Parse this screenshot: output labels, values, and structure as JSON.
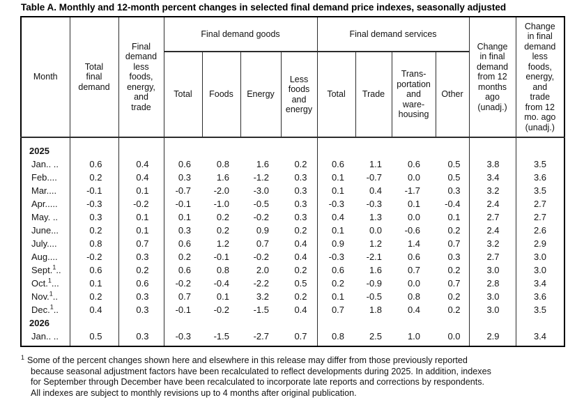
{
  "title": "Table A. Monthly and 12-month percent changes in selected final demand price indexes, seasonally adjusted",
  "header": {
    "month": "Month",
    "total_final_demand": "Total\nfinal\ndemand",
    "fd_less_fet": "Final\ndemand\nless\nfoods,\nenergy,\nand\ntrade",
    "goods_group": "Final demand goods",
    "services_group": "Final demand services",
    "goods_total": "Total",
    "goods_foods": "Foods",
    "goods_energy": "Energy",
    "goods_less": "Less\nfoods\nand\nenergy",
    "svc_total": "Total",
    "svc_trade": "Trade",
    "svc_transp": "Trans-\nportation\nand\nware-\nhousing",
    "svc_other": "Other",
    "chg_12mo": "Change\nin final\ndemand\nfrom 12\nmonths\nago\n(unadj.)",
    "chg_12mo_less": "Change\nin final\ndemand\nless\nfoods,\nenergy,\nand\ntrade\nfrom 12\nmo. ago\n(unadj.)"
  },
  "rows": [
    {
      "type": "year",
      "label": "2025"
    },
    {
      "type": "data",
      "month": "Jan.. ..",
      "sup": "",
      "dots": "",
      "values": [
        "0.6",
        "0.4",
        "0.6",
        "0.8",
        "1.6",
        "0.2",
        "0.6",
        "1.1",
        "0.6",
        "0.5",
        "3.8",
        "3.5"
      ]
    },
    {
      "type": "data",
      "month": "Feb....",
      "sup": "",
      "dots": "",
      "values": [
        "0.2",
        "0.4",
        "0.3",
        "1.6",
        "-1.2",
        "0.3",
        "0.1",
        "-0.7",
        "0.0",
        "0.5",
        "3.4",
        "3.6"
      ]
    },
    {
      "type": "data",
      "month": "Mar....",
      "sup": "",
      "dots": "",
      "values": [
        "-0.1",
        "0.1",
        "-0.7",
        "-2.0",
        "-3.0",
        "0.3",
        "0.1",
        "0.4",
        "-1.7",
        "0.3",
        "3.2",
        "3.5"
      ]
    },
    {
      "type": "data",
      "month": "Apr.....",
      "sup": "",
      "dots": "",
      "values": [
        "-0.3",
        "-0.2",
        "-0.1",
        "-1.0",
        "-0.5",
        "0.3",
        "-0.3",
        "-0.3",
        "0.1",
        "-0.4",
        "2.4",
        "2.7"
      ]
    },
    {
      "type": "data",
      "month": "May. ..",
      "sup": "",
      "dots": "",
      "values": [
        "0.3",
        "0.1",
        "0.1",
        "0.2",
        "-0.2",
        "0.3",
        "0.4",
        "1.3",
        "0.0",
        "0.1",
        "2.7",
        "2.7"
      ]
    },
    {
      "type": "data",
      "month": "June...",
      "sup": "",
      "dots": "",
      "values": [
        "0.2",
        "0.1",
        "0.3",
        "0.2",
        "0.9",
        "0.2",
        "0.1",
        "0.0",
        "-0.6",
        "0.2",
        "2.4",
        "2.6"
      ]
    },
    {
      "type": "data",
      "month": "July....",
      "sup": "",
      "dots": "",
      "values": [
        "0.8",
        "0.7",
        "0.6",
        "1.2",
        "0.7",
        "0.4",
        "0.9",
        "1.2",
        "1.4",
        "0.7",
        "3.2",
        "2.9"
      ]
    },
    {
      "type": "data",
      "month": "Aug....",
      "sup": "",
      "dots": "",
      "values": [
        "-0.2",
        "0.3",
        "0.2",
        "-0.1",
        "-0.2",
        "0.4",
        "-0.3",
        "-2.1",
        "0.6",
        "0.3",
        "2.7",
        "3.0"
      ]
    },
    {
      "type": "data",
      "month": "Sept.",
      "sup": "1",
      "dots": "..",
      "values": [
        "0.6",
        "0.2",
        "0.6",
        "0.8",
        "2.0",
        "0.2",
        "0.6",
        "1.6",
        "0.7",
        "0.2",
        "3.0",
        "3.0"
      ]
    },
    {
      "type": "data",
      "month": "Oct.",
      "sup": "1",
      "dots": "...",
      "values": [
        "0.1",
        "0.6",
        "-0.2",
        "-0.4",
        "-2.2",
        "0.5",
        "0.2",
        "-0.9",
        "0.0",
        "0.7",
        "2.8",
        "3.4"
      ]
    },
    {
      "type": "data",
      "month": "Nov.",
      "sup": "1",
      "dots": "..",
      "values": [
        "0.2",
        "0.3",
        "0.7",
        "0.1",
        "3.2",
        "0.2",
        "0.1",
        "-0.5",
        "0.8",
        "0.2",
        "3.0",
        "3.6"
      ]
    },
    {
      "type": "data",
      "month": "Dec.",
      "sup": "1",
      "dots": "..",
      "values": [
        "0.4",
        "0.3",
        "-0.1",
        "-0.2",
        "-1.5",
        "0.4",
        "0.7",
        "1.8",
        "0.4",
        "0.2",
        "3.0",
        "3.5"
      ]
    },
    {
      "type": "year",
      "label": "2026"
    },
    {
      "type": "data",
      "month": "Jan.. ..",
      "sup": "",
      "dots": "",
      "values": [
        "0.5",
        "0.3",
        "-0.3",
        "-1.5",
        "-2.7",
        "0.7",
        "0.8",
        "2.5",
        "1.0",
        "0.0",
        "2.9",
        "3.4"
      ]
    }
  ],
  "footnote": {
    "marker": "1",
    "lines": [
      "Some of the percent changes shown here and elsewhere in this release may differ from those previously reported",
      "because seasonal adjustment factors have been recalculated to reflect developments during 2025. In addition, indexes",
      "for September through December have been recalculated to incorporate late reports and corrections by respondents.",
      "All indexes are subject to monthly revisions up to 4 months after original publication."
    ]
  }
}
